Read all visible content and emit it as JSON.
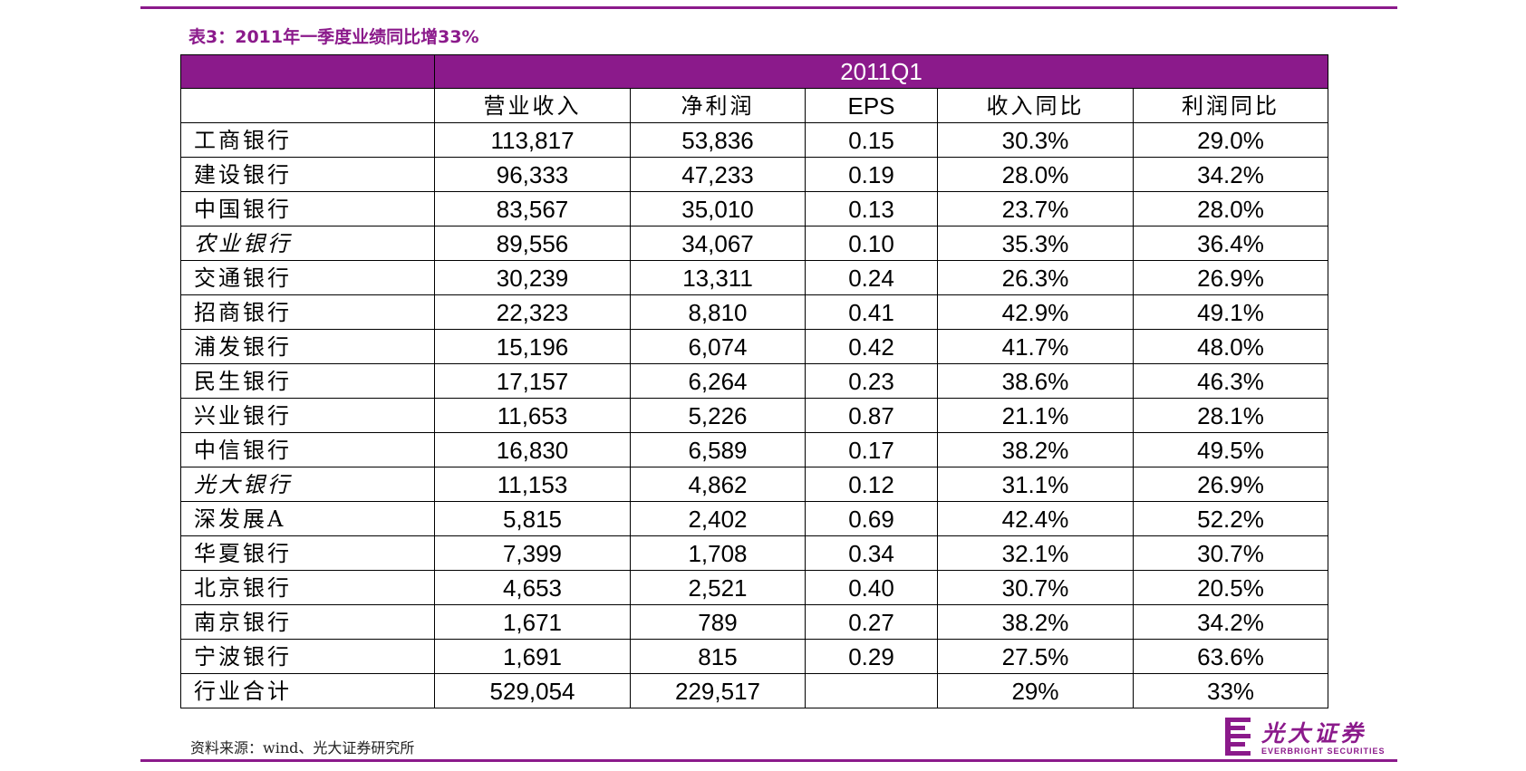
{
  "title": "表3：2011年一季度业绩同比增33%",
  "period": "2011Q1",
  "columns": [
    "营业收入",
    "净利润",
    "EPS",
    "收入同比",
    "利润同比"
  ],
  "rows": [
    {
      "name": "工商银行",
      "italic": false,
      "values": [
        "113,817",
        "53,836",
        "0.15",
        "30.3%",
        "29.0%"
      ]
    },
    {
      "name": "建设银行",
      "italic": false,
      "values": [
        "96,333",
        "47,233",
        "0.19",
        "28.0%",
        "34.2%"
      ]
    },
    {
      "name": "中国银行",
      "italic": false,
      "values": [
        "83,567",
        "35,010",
        "0.13",
        "23.7%",
        "28.0%"
      ]
    },
    {
      "name": "农业银行",
      "italic": true,
      "values": [
        "89,556",
        "34,067",
        "0.10",
        "35.3%",
        "36.4%"
      ]
    },
    {
      "name": "交通银行",
      "italic": false,
      "values": [
        "30,239",
        "13,311",
        "0.24",
        "26.3%",
        "26.9%"
      ]
    },
    {
      "name": "招商银行",
      "italic": false,
      "values": [
        "22,323",
        "8,810",
        "0.41",
        "42.9%",
        "49.1%"
      ]
    },
    {
      "name": "浦发银行",
      "italic": false,
      "values": [
        "15,196",
        "6,074",
        "0.42",
        "41.7%",
        "48.0%"
      ]
    },
    {
      "name": "民生银行",
      "italic": false,
      "values": [
        "17,157",
        "6,264",
        "0.23",
        "38.6%",
        "46.3%"
      ]
    },
    {
      "name": "兴业银行",
      "italic": false,
      "values": [
        "11,653",
        "5,226",
        "0.87",
        "21.1%",
        "28.1%"
      ]
    },
    {
      "name": "中信银行",
      "italic": false,
      "values": [
        "16,830",
        "6,589",
        "0.17",
        "38.2%",
        "49.5%"
      ]
    },
    {
      "name": "光大银行",
      "italic": true,
      "values": [
        "11,153",
        "4,862",
        "0.12",
        "31.1%",
        "26.9%"
      ]
    },
    {
      "name": "深发展A",
      "italic": false,
      "values": [
        "5,815",
        "2,402",
        "0.69",
        "42.4%",
        "52.2%"
      ]
    },
    {
      "name": "华夏银行",
      "italic": false,
      "values": [
        "7,399",
        "1,708",
        "0.34",
        "32.1%",
        "30.7%"
      ]
    },
    {
      "name": "北京银行",
      "italic": false,
      "values": [
        "4,653",
        "2,521",
        "0.40",
        "30.7%",
        "20.5%"
      ]
    },
    {
      "name": "南京银行",
      "italic": false,
      "values": [
        "1,671",
        "789",
        "0.27",
        "38.2%",
        "34.2%"
      ]
    },
    {
      "name": "宁波银行",
      "italic": false,
      "values": [
        "1,691",
        "815",
        "0.29",
        "27.5%",
        "63.6%"
      ]
    },
    {
      "name": "行业合计",
      "italic": false,
      "values": [
        "529,054",
        "229,517",
        "",
        "29%",
        "33%"
      ]
    }
  ],
  "source": "资料来源：wind、光大证券研究所",
  "logo": {
    "cn": "光大证券",
    "en": "EVERBRIGHT SECURITIES",
    "color": "#8b1a8b"
  },
  "colors": {
    "accent": "#8b1a8b",
    "header_text": "#ffffff"
  }
}
